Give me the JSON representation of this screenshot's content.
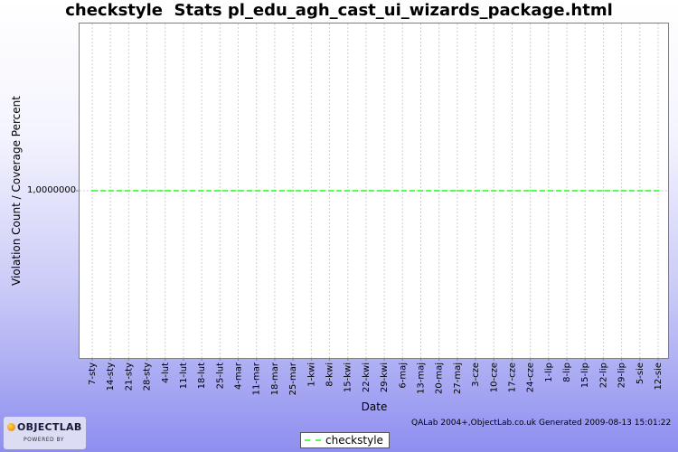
{
  "title": "checkstyle  Stats pl_edu_agh_cast_ui_wizards_package.html",
  "footer": "QALab 2004+,ObjectLab.co.uk Generated 2009-08-13 15:01:22",
  "logo": {
    "main": "OBJECTLAB",
    "sub": "POWERED BY"
  },
  "colors": {
    "series": "#55ff55",
    "grid": "#d0d0d0"
  },
  "chart_data": {
    "type": "line",
    "xlabel": "Date",
    "ylabel": "Violation Count / Coverage Percent",
    "y_ticks": [
      "1,0000000"
    ],
    "x": [
      "7-sty",
      "14-sty",
      "21-sty",
      "28-sty",
      "4-lut",
      "11-lut",
      "18-lut",
      "25-lut",
      "4-mar",
      "11-mar",
      "18-mar",
      "25-mar",
      "1-kwi",
      "8-kwi",
      "15-kwi",
      "22-kwi",
      "29-kwi",
      "6-maj",
      "13-maj",
      "20-maj",
      "27-maj",
      "3-cze",
      "10-cze",
      "17-cze",
      "24-cze",
      "1-lip",
      "8-lip",
      "15-lip",
      "22-lip",
      "29-lip",
      "5-sie",
      "12-sie"
    ],
    "series": [
      {
        "name": "checkstyle",
        "values": [
          1,
          1,
          1,
          1,
          1,
          1,
          1,
          1,
          1,
          1,
          1,
          1,
          1,
          1,
          1,
          1,
          1,
          1,
          1,
          1,
          1,
          1,
          1,
          1,
          1,
          1,
          1,
          1,
          1,
          1,
          1,
          1
        ]
      }
    ],
    "ylim": [
      0,
      2
    ],
    "grid": true,
    "legend": "bottom-center"
  }
}
